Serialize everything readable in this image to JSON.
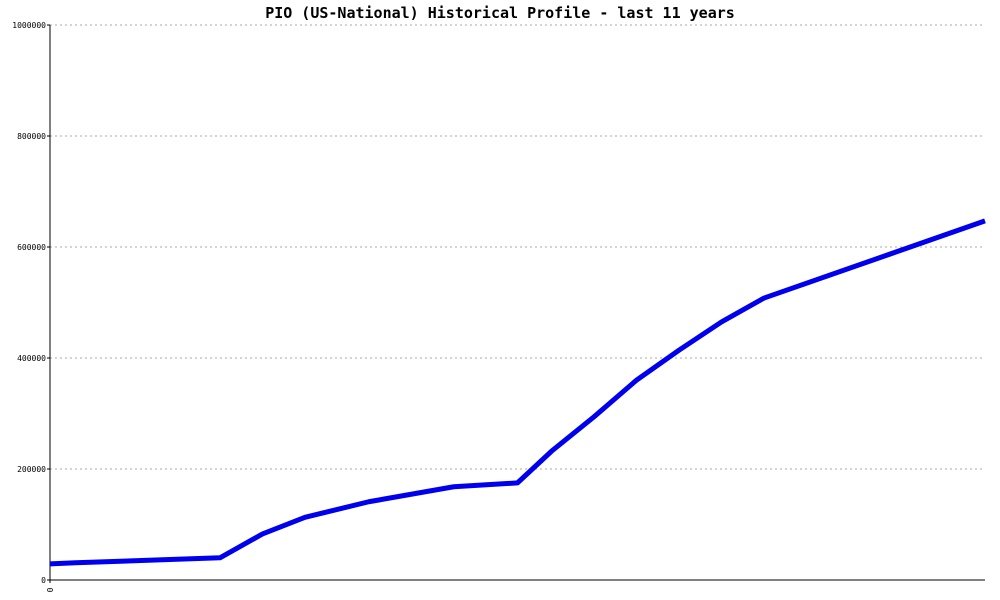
{
  "chart_data": {
    "type": "line",
    "title": "PIO (US-National) Historical Profile - last 11 years",
    "x": [
      0,
      0.3,
      2,
      2.5,
      3,
      3.75,
      4.75,
      5.5,
      5.9,
      6.4,
      6.9,
      7.4,
      7.9,
      8.4,
      11
    ],
    "series": [
      {
        "name": "PIO",
        "color": "#0000ee",
        "values": [
          29000,
          31000,
          40000,
          83000,
          113000,
          141000,
          168000,
          175000,
          232000,
          294000,
          360000,
          414000,
          465000,
          508000,
          647000
        ]
      }
    ],
    "xlim": [
      0,
      11
    ],
    "xticks": [
      0
    ],
    "ylim": [
      0,
      1000000
    ],
    "yticks": [
      0,
      200000,
      400000,
      600000,
      800000,
      1000000
    ],
    "grid": true
  }
}
